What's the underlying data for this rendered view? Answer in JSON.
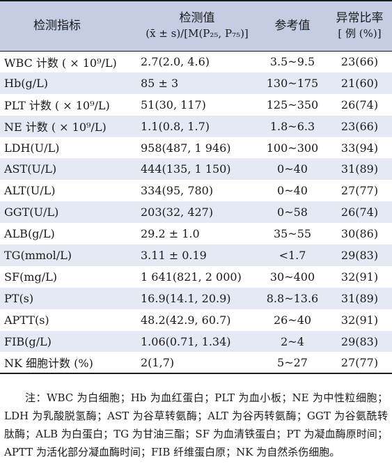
{
  "header": {
    "metric": "检测指标",
    "value_title": "检测值",
    "value_sub": "(x̄ ± s)/[M(P₂₅, P₇₅)]",
    "reference": "参考值",
    "rate_title": "异常比率",
    "rate_sub": "[ 例 (%)]"
  },
  "rows": [
    {
      "metric": "WBC 计数 ( × 10⁹/L)",
      "value": "2.7(2.0, 4.6)",
      "reference": "3.5~9.5",
      "rate": "23(66)"
    },
    {
      "metric": "Hb(g/L)",
      "value": "85 ± 3",
      "reference": "130~175",
      "rate": "21(60)"
    },
    {
      "metric": "PLT 计数 ( × 10⁹/L)",
      "value": "51(30, 117)",
      "reference": "125~350",
      "rate": "26(74)"
    },
    {
      "metric": "NE 计数 ( × 10⁹/L)",
      "value": "1.1(0.8, 1.7)",
      "reference": "1.8~6.3",
      "rate": "23(66)"
    },
    {
      "metric": "LDH(U/L)",
      "value": "958(487, 1 946)",
      "reference": "100~300",
      "rate": "33(94)"
    },
    {
      "metric": "AST(U/L)",
      "value": "444(135, 1 150)",
      "reference": "0~40",
      "rate": "31(89)"
    },
    {
      "metric": "ALT(U/L)",
      "value": "334(95, 780)",
      "reference": "0~40",
      "rate": "27(77)"
    },
    {
      "metric": "GGT(U/L)",
      "value": "203(32, 427)",
      "reference": "0~58",
      "rate": "26(74)"
    },
    {
      "metric": "ALB(g/L)",
      "value": "29.2 ± 1.0",
      "reference": "35~55",
      "rate": "30(86)"
    },
    {
      "metric": "TG(mmol/L)",
      "value": "3.11 ± 0.19",
      "reference": "<1.7",
      "rate": "29(83)"
    },
    {
      "metric": "SF(mg/L)",
      "value": "1 641(821, 2 000)",
      "reference": "30~400",
      "rate": "32(91)"
    },
    {
      "metric": "PT(s)",
      "value": "16.9(14.1, 20.9)",
      "reference": "8.8~13.6",
      "rate": "31(89)"
    },
    {
      "metric": "APTT(s)",
      "value": "48.2(42.9, 60.7)",
      "reference": "26~40",
      "rate": "32(91)"
    },
    {
      "metric": "FIB(g/L)",
      "value": "1.06(0.71, 1.34)",
      "reference": "2~4",
      "rate": "29(83)"
    },
    {
      "metric": "NK 细胞计数 (%)",
      "value": "2(1,7)",
      "reference": "5~27",
      "rate": "27(77)"
    }
  ],
  "note": "注：WBC 为白细胞；Hb 为血红蛋白；PLT 为血小板；NE 为中性粒细胞；LDH 为乳酸脱氢酶；AST 为谷草转氨酶；ALT 为谷丙转氨酶；GGT 为谷氨酰转肽酶；ALB 为白蛋白；TG 为甘油三酯；SF 为血清铁蛋白；PT 为凝血酶原时间；APTT 为活化部分凝血酶时间；FIB 纤维蛋白原；NK 为自然杀伤细胞。",
  "colors": {
    "header_bg": "#c4cde4",
    "stripe_bg": "#e5e9f3",
    "text": "#1a1a1a"
  }
}
